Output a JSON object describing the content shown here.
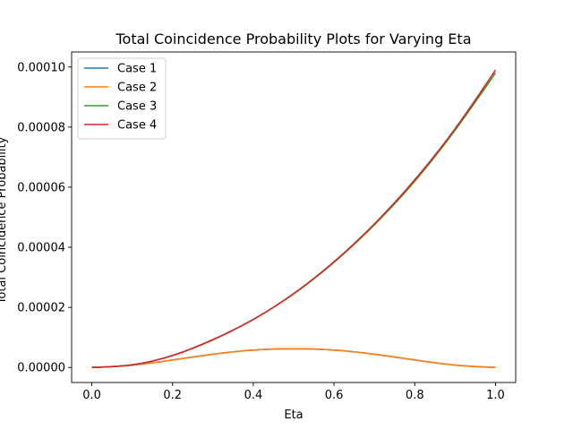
{
  "chart_data": {
    "type": "line",
    "title": "Total Coincidence Probability Plots for Varying Eta",
    "xlabel": "Eta",
    "ylabel": "Total Coincidence Probability",
    "xlim": [
      -0.05,
      1.05
    ],
    "ylim": [
      -5e-06,
      0.000105
    ],
    "x_ticks": [
      0.0,
      0.2,
      0.4,
      0.6,
      0.8,
      1.0
    ],
    "x_tick_labels": [
      "0.0",
      "0.2",
      "0.4",
      "0.6",
      "0.8",
      "1.0"
    ],
    "y_ticks": [
      0,
      2e-05,
      4e-05,
      6e-05,
      8e-05,
      0.0001
    ],
    "y_tick_labels": [
      "0.00000",
      "0.00002",
      "0.00004",
      "0.00006",
      "0.00008",
      "0.00010"
    ],
    "grid": false,
    "legend_position": "top-left",
    "x": [
      0.0,
      0.1,
      0.2,
      0.3,
      0.4,
      0.5,
      0.6,
      0.7,
      0.8,
      0.9,
      1.0
    ],
    "series": [
      {
        "name": "Case 1",
        "color": "#1f77b4",
        "values": [
          0,
          8e-07,
          2.5e-06,
          4.4e-06,
          5.8e-06,
          6.2e-06,
          5.8e-06,
          4.4e-06,
          2.5e-06,
          8e-07,
          0
        ]
      },
      {
        "name": "Case 2",
        "color": "#ff7f0e",
        "values": [
          0,
          8e-07,
          2.5e-06,
          4.4e-06,
          5.8e-06,
          6.2e-06,
          5.8e-06,
          4.4e-06,
          2.5e-06,
          8e-07,
          0
        ]
      },
      {
        "name": "Case 3",
        "color": "#2ca02c",
        "values": [
          0,
          9e-07,
          4e-06,
          9.2e-06,
          1.6e-05,
          2.45e-05,
          3.5e-05,
          4.75e-05,
          6.2e-05,
          7.9e-05,
          9.8e-05
        ]
      },
      {
        "name": "Case 4",
        "color": "#d62728",
        "values": [
          0,
          9e-07,
          4e-06,
          9.3e-06,
          1.6e-05,
          2.46e-05,
          3.52e-05,
          4.78e-05,
          6.25e-05,
          7.95e-05,
          9.9e-05
        ]
      }
    ]
  }
}
